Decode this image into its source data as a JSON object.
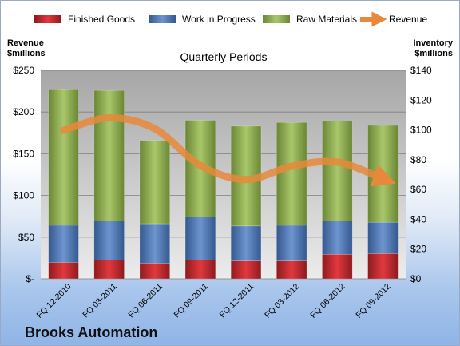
{
  "company_name": "Brooks Automation",
  "colors": {
    "finished_goods": "#c0282d",
    "work_in_progress": "#4a75b5",
    "raw_materials": "#8cab4e",
    "revenue": "#e8883a"
  },
  "chart_data": {
    "type": "bar",
    "stacked": true,
    "title": "Quarterly Periods",
    "ylabel_left": "Revenue\n$millions",
    "ylabel_right": "Inventory\n$millions",
    "categories": [
      "FQ 12-2010",
      "FQ 03-2011",
      "FQ 06-2011",
      "FQ 09-2011",
      "FQ 12-2011",
      "FQ 03-2012",
      "FQ 06-2012",
      "FQ 09-2012"
    ],
    "ylim_left": [
      0,
      250
    ],
    "ylim_right": [
      0,
      140
    ],
    "yticks_left": [
      "$-",
      "$50",
      "$100",
      "$150",
      "$200",
      "$250"
    ],
    "yticks_right": [
      "$0",
      "$20",
      "$40",
      "$60",
      "$80",
      "$100",
      "$120",
      "$140"
    ],
    "legend_position": "top",
    "grid": true,
    "series": [
      {
        "name": "Finished Goods",
        "axis": "right",
        "values": [
          11,
          12.5,
          10.5,
          12.5,
          12,
          12,
          16.5,
          17
        ]
      },
      {
        "name": "Work in Progress",
        "axis": "right",
        "values": [
          25,
          26.5,
          26.5,
          29,
          23.5,
          24,
          22.5,
          21
        ]
      },
      {
        "name": "Raw Materials",
        "axis": "right",
        "values": [
          91,
          87.5,
          56,
          65,
          67,
          69,
          67,
          65
        ]
      },
      {
        "name": "Revenue",
        "axis": "left",
        "type": "line",
        "values": [
          178,
          193,
          180,
          136,
          119,
          135,
          140,
          120
        ]
      }
    ]
  }
}
